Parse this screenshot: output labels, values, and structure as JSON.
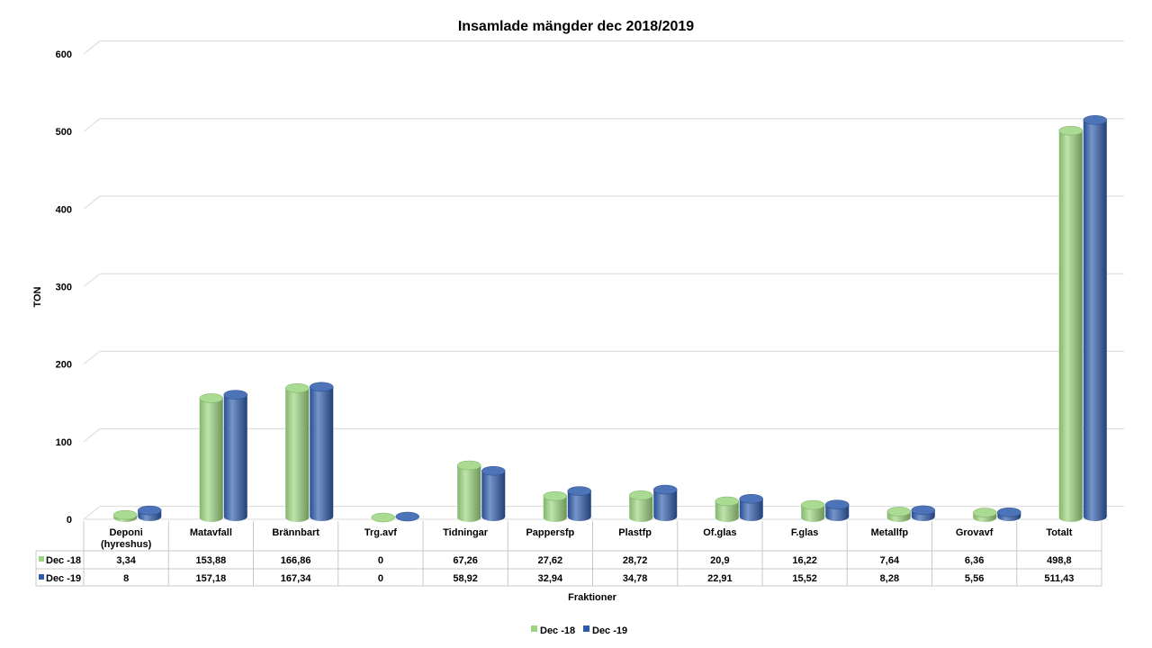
{
  "chart_data": {
    "type": "bar",
    "title": "Insamlade mängder dec 2018/2019",
    "xlabel": "Fraktioner",
    "ylabel": "TON",
    "ylim": [
      0,
      600
    ],
    "yticks": [
      0,
      100,
      200,
      300,
      400,
      500,
      600
    ],
    "grid": true,
    "legend_position": "bottom",
    "categories": [
      "Deponi (hyreshus)",
      "Matavfall",
      "Brännbart",
      "Trg.avf",
      "Tidningar",
      "Pappersfp",
      "Plastfp",
      "Of.glas",
      "F.glas",
      "Metallfp",
      "Grovavf",
      "Totalt"
    ],
    "series": [
      {
        "name": "Dec -18",
        "color": "#9bd57f",
        "values": [
          3.34,
          153.88,
          166.86,
          0,
          67.26,
          27.62,
          28.72,
          20.9,
          16.22,
          7.64,
          6.36,
          498.8
        ],
        "labels": [
          "3,34",
          "153,88",
          "166,86",
          "0",
          "67,26",
          "27,62",
          "28,72",
          "20,9",
          "16,22",
          "7,64",
          "6,36",
          "498,8"
        ]
      },
      {
        "name": "Dec -19",
        "color": "#2e5cac",
        "values": [
          8,
          157.18,
          167.34,
          0,
          58.92,
          32.94,
          34.78,
          22.91,
          15.52,
          8.28,
          5.56,
          511.43
        ],
        "labels": [
          "8",
          "157,18",
          "167,34",
          "0",
          "58,92",
          "32,94",
          "34,78",
          "22,91",
          "15,52",
          "8,28",
          "5,56",
          "511,43"
        ]
      }
    ]
  }
}
